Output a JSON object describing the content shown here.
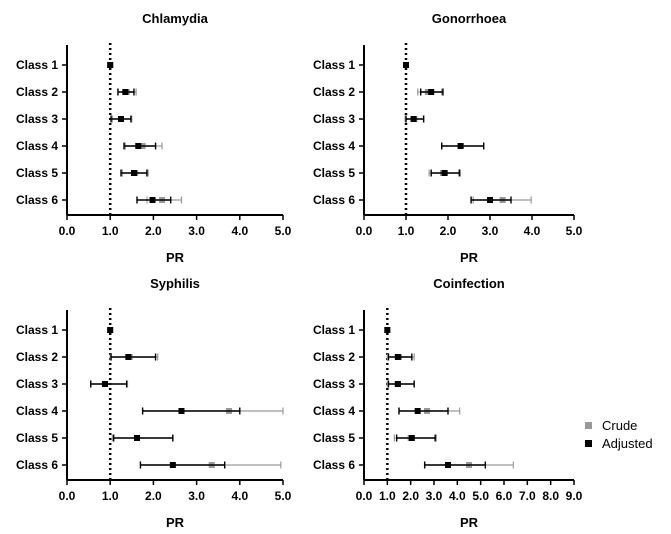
{
  "chart_data": [
    {
      "type": "forest",
      "title": "Chlamydia",
      "xlabel": "PR",
      "xlim": [
        0,
        5
      ],
      "x_ticks": [
        "0.0",
        "1.0",
        "2.0",
        "3.0",
        "4.0",
        "5.0"
      ],
      "categories": [
        "Class 1",
        "Class 2",
        "Class 3",
        "Class 4",
        "Class 5",
        "Class 6"
      ],
      "reference_line": 1.0,
      "series": [
        {
          "name": "Crude",
          "color": "#999999",
          "estimates": [
            1.0,
            1.38,
            1.25,
            1.75,
            1.58,
            2.2
          ],
          "lower": [
            1.0,
            1.18,
            1.05,
            1.35,
            1.28,
            1.85
          ],
          "upper": [
            1.0,
            1.6,
            1.5,
            2.2,
            1.88,
            2.65
          ]
        },
        {
          "name": "Adjusted",
          "color": "#000000",
          "estimates": [
            1.0,
            1.35,
            1.25,
            1.65,
            1.55,
            1.98
          ],
          "lower": [
            1.0,
            1.18,
            1.02,
            1.32,
            1.25,
            1.62
          ],
          "upper": [
            1.0,
            1.55,
            1.48,
            2.05,
            1.85,
            2.4
          ]
        }
      ]
    },
    {
      "type": "forest",
      "title": "Gonorrhoea",
      "xlabel": "PR",
      "xlim": [
        0,
        5
      ],
      "x_ticks": [
        "0.0",
        "1.0",
        "2.0",
        "3.0",
        "4.0",
        "5.0"
      ],
      "categories": [
        "Class 1",
        "Class 2",
        "Class 3",
        "Class 4",
        "Class 5",
        "Class 6"
      ],
      "reference_line": 1.0,
      "series": [
        {
          "name": "Crude",
          "color": "#999999",
          "estimates": [
            1.0,
            1.52,
            1.2,
            2.3,
            1.88,
            3.3
          ],
          "lower": [
            1.0,
            1.28,
            0.98,
            1.85,
            1.55,
            2.6
          ],
          "upper": [
            1.0,
            1.85,
            1.42,
            2.85,
            2.25,
            3.98
          ]
        },
        {
          "name": "Adjusted",
          "color": "#000000",
          "estimates": [
            1.0,
            1.6,
            1.18,
            2.3,
            1.92,
            3.0
          ],
          "lower": [
            1.0,
            1.35,
            1.0,
            1.85,
            1.6,
            2.55
          ],
          "upper": [
            1.0,
            1.88,
            1.42,
            2.85,
            2.28,
            3.5
          ]
        }
      ]
    },
    {
      "type": "forest",
      "title": "Syphilis",
      "xlabel": "PR",
      "xlim": [
        0,
        5
      ],
      "x_ticks": [
        "0.0",
        "1.0",
        "2.0",
        "3.0",
        "4.0",
        "5.0"
      ],
      "categories": [
        "Class 1",
        "Class 2",
        "Class 3",
        "Class 4",
        "Class 5",
        "Class 6"
      ],
      "reference_line": 1.0,
      "series": [
        {
          "name": "Crude",
          "color": "#999999",
          "estimates": [
            1.0,
            1.45,
            0.88,
            3.75,
            1.62,
            3.35
          ],
          "lower": [
            1.0,
            1.0,
            0.55,
            1.75,
            1.05,
            1.7
          ],
          "upper": [
            1.0,
            2.1,
            1.4,
            5.0,
            2.45,
            4.95
          ]
        },
        {
          "name": "Adjusted",
          "color": "#000000",
          "estimates": [
            1.0,
            1.42,
            0.88,
            2.65,
            1.62,
            2.45
          ],
          "lower": [
            1.0,
            1.02,
            0.55,
            1.75,
            1.08,
            1.7
          ],
          "upper": [
            1.0,
            2.05,
            1.38,
            4.0,
            2.45,
            3.65
          ]
        }
      ]
    },
    {
      "type": "forest",
      "title": "Coinfection",
      "xlabel": "PR",
      "xlim": [
        0,
        9
      ],
      "x_ticks": [
        "0.0",
        "1.0",
        "2.0",
        "3.0",
        "4.0",
        "5.0",
        "6.0",
        "7.0",
        "8.0",
        "9.0"
      ],
      "categories": [
        "Class 1",
        "Class 2",
        "Class 3",
        "Class 4",
        "Class 5",
        "Class 6"
      ],
      "reference_line": 1.0,
      "series": [
        {
          "name": "Crude",
          "color": "#999999",
          "estimates": [
            1.0,
            1.5,
            1.45,
            2.7,
            2.0,
            4.5
          ],
          "lower": [
            1.0,
            1.0,
            1.0,
            1.5,
            1.3,
            2.6
          ],
          "upper": [
            1.0,
            2.15,
            2.15,
            4.1,
            3.1,
            6.4
          ]
        },
        {
          "name": "Adjusted",
          "color": "#000000",
          "estimates": [
            1.0,
            1.45,
            1.45,
            2.3,
            2.05,
            3.6
          ],
          "lower": [
            1.0,
            1.05,
            1.05,
            1.5,
            1.4,
            2.6
          ],
          "upper": [
            1.0,
            2.05,
            2.15,
            3.6,
            3.05,
            5.2
          ]
        }
      ]
    }
  ],
  "legend": {
    "items": [
      {
        "label": "Crude",
        "color": "#999999"
      },
      {
        "label": "Adjusted",
        "color": "#000000"
      }
    ]
  }
}
